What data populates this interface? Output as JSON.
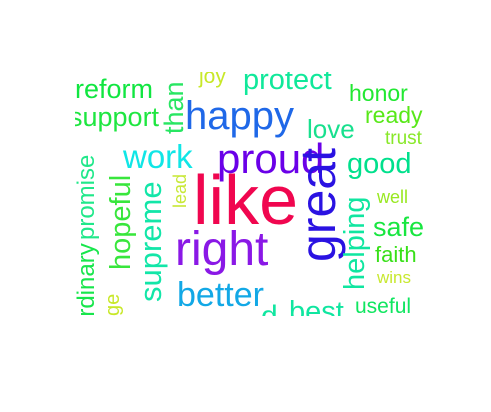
{
  "word_cloud": {
    "words": [
      {
        "text": "like",
        "color": "#f0064f"
      },
      {
        "text": "proud",
        "color": "#6a00e8"
      },
      {
        "text": "right",
        "color": "#8a18e6"
      },
      {
        "text": "happy",
        "color": "#1f68e8"
      },
      {
        "text": "great",
        "color": "#2a12e2"
      },
      {
        "text": "better",
        "color": "#12a8e6"
      },
      {
        "text": "work",
        "color": "#10e6e6"
      },
      {
        "text": "supreme",
        "color": "#12e6a8"
      },
      {
        "text": "good",
        "color": "#00e08c"
      },
      {
        "text": "helping",
        "color": "#10e6a0"
      },
      {
        "text": "love",
        "color": "#18e08e"
      },
      {
        "text": "safe",
        "color": "#18e640"
      },
      {
        "text": "hopeful",
        "color": "#38e63c"
      },
      {
        "text": "support",
        "color": "#1ee640"
      },
      {
        "text": "reform",
        "color": "#10e640"
      },
      {
        "text": "protect",
        "color": "#10e89a"
      },
      {
        "text": "honor",
        "color": "#22e832"
      },
      {
        "text": "ready",
        "color": "#58e818"
      },
      {
        "text": "faith",
        "color": "#38e018"
      },
      {
        "text": "best",
        "color": "#10e6a0"
      },
      {
        "text": "useful",
        "color": "#10e660"
      },
      {
        "text": "trust",
        "color": "#88e828"
      },
      {
        "text": "well",
        "color": "#98e820"
      },
      {
        "text": "wins",
        "color": "#c8e830"
      },
      {
        "text": "joy",
        "color": "#c8e828"
      },
      {
        "text": "lead",
        "color": "#c8e838"
      },
      {
        "text": "than",
        "color": "#28e662"
      },
      {
        "text": "promise",
        "color": "#20e88a"
      },
      {
        "text": "ordinary",
        "color": "#18e64c"
      },
      {
        "text": "ge",
        "color": "#c8e828"
      },
      {
        "text": "d",
        "color": "#10e6a0"
      }
    ]
  }
}
